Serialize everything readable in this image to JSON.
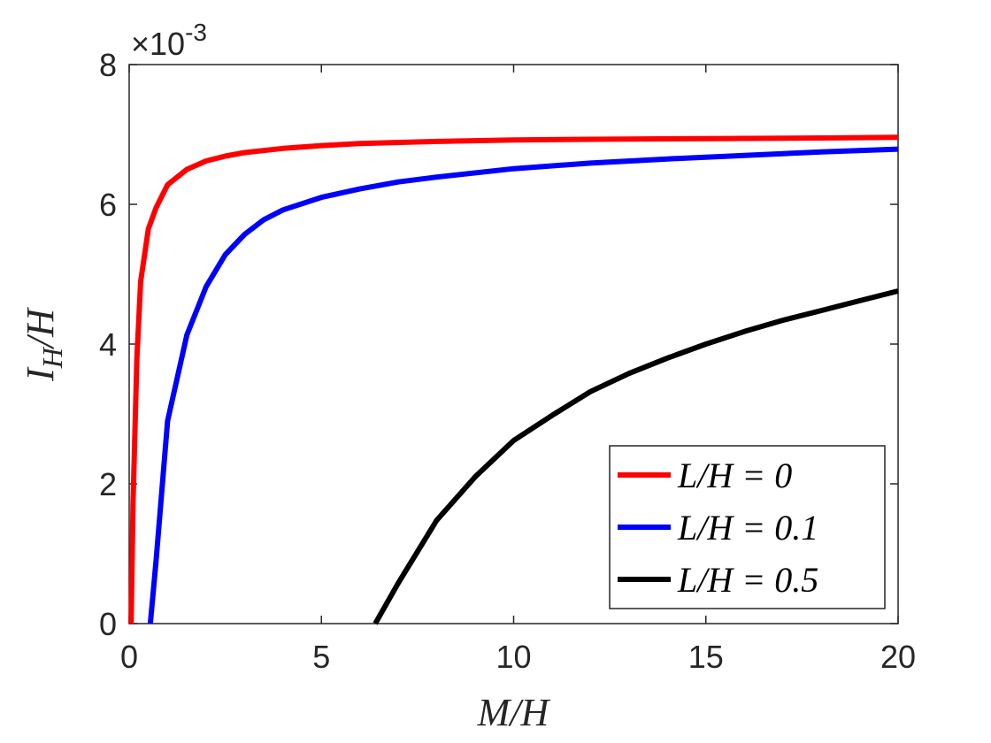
{
  "chart_data": {
    "type": "line",
    "title": "",
    "xlabel": "M/H",
    "ylabel": "I_H/H",
    "ylabel_main": "I",
    "ylabel_sub": "H",
    "ylabel_rest": "/H",
    "xlim": [
      0,
      20
    ],
    "ylim": [
      0,
      0.008
    ],
    "x_ticks": [
      0,
      5,
      10,
      15,
      20
    ],
    "x_tick_labels": [
      "0",
      "5",
      "10",
      "15",
      "20"
    ],
    "y_ticks": [
      0,
      0.002,
      0.004,
      0.006,
      0.008
    ],
    "y_tick_labels": [
      "0",
      "2",
      "4",
      "6",
      "8"
    ],
    "y_exponent_label": "×10",
    "y_exponent_power": "-3",
    "grid": false,
    "legend_position": "bottom-right",
    "series": [
      {
        "name": "L/H = 0",
        "color": "#ff0000",
        "x": [
          0.05,
          0.1,
          0.2,
          0.3,
          0.5,
          0.7,
          1,
          1.5,
          2,
          2.5,
          3,
          4,
          5,
          6,
          8,
          10,
          12,
          15,
          18,
          20
        ],
        "y": [
          0,
          0.0017,
          0.0038,
          0.0049,
          0.00565,
          0.00595,
          0.00628,
          0.0065,
          0.00662,
          0.00669,
          0.00674,
          0.0068,
          0.00684,
          0.00687,
          0.0069,
          0.00692,
          0.00693,
          0.00694,
          0.00695,
          0.00696
        ]
      },
      {
        "name": "L/H = 0.1",
        "color": "#0000ff",
        "x": [
          0.55,
          0.7,
          1,
          1.5,
          2,
          2.5,
          3,
          3.5,
          4,
          5,
          6,
          7,
          8,
          10,
          12,
          14,
          16,
          18,
          20
        ],
        "y": [
          0,
          0.0009,
          0.0029,
          0.00413,
          0.00482,
          0.00528,
          0.00557,
          0.00578,
          0.00592,
          0.0061,
          0.00622,
          0.00632,
          0.00639,
          0.00651,
          0.00659,
          0.00665,
          0.0067,
          0.00675,
          0.00679
        ]
      },
      {
        "name": "L/H = 0.5",
        "color": "#000000",
        "x": [
          6.4,
          7,
          8,
          9,
          10,
          11,
          12,
          13,
          14,
          15,
          16,
          17,
          18,
          19,
          20
        ],
        "y": [
          0,
          0.00058,
          0.00148,
          0.0021,
          0.00262,
          0.00298,
          0.00332,
          0.00358,
          0.0038,
          0.004,
          0.00418,
          0.00434,
          0.00448,
          0.00462,
          0.00476
        ]
      }
    ]
  }
}
